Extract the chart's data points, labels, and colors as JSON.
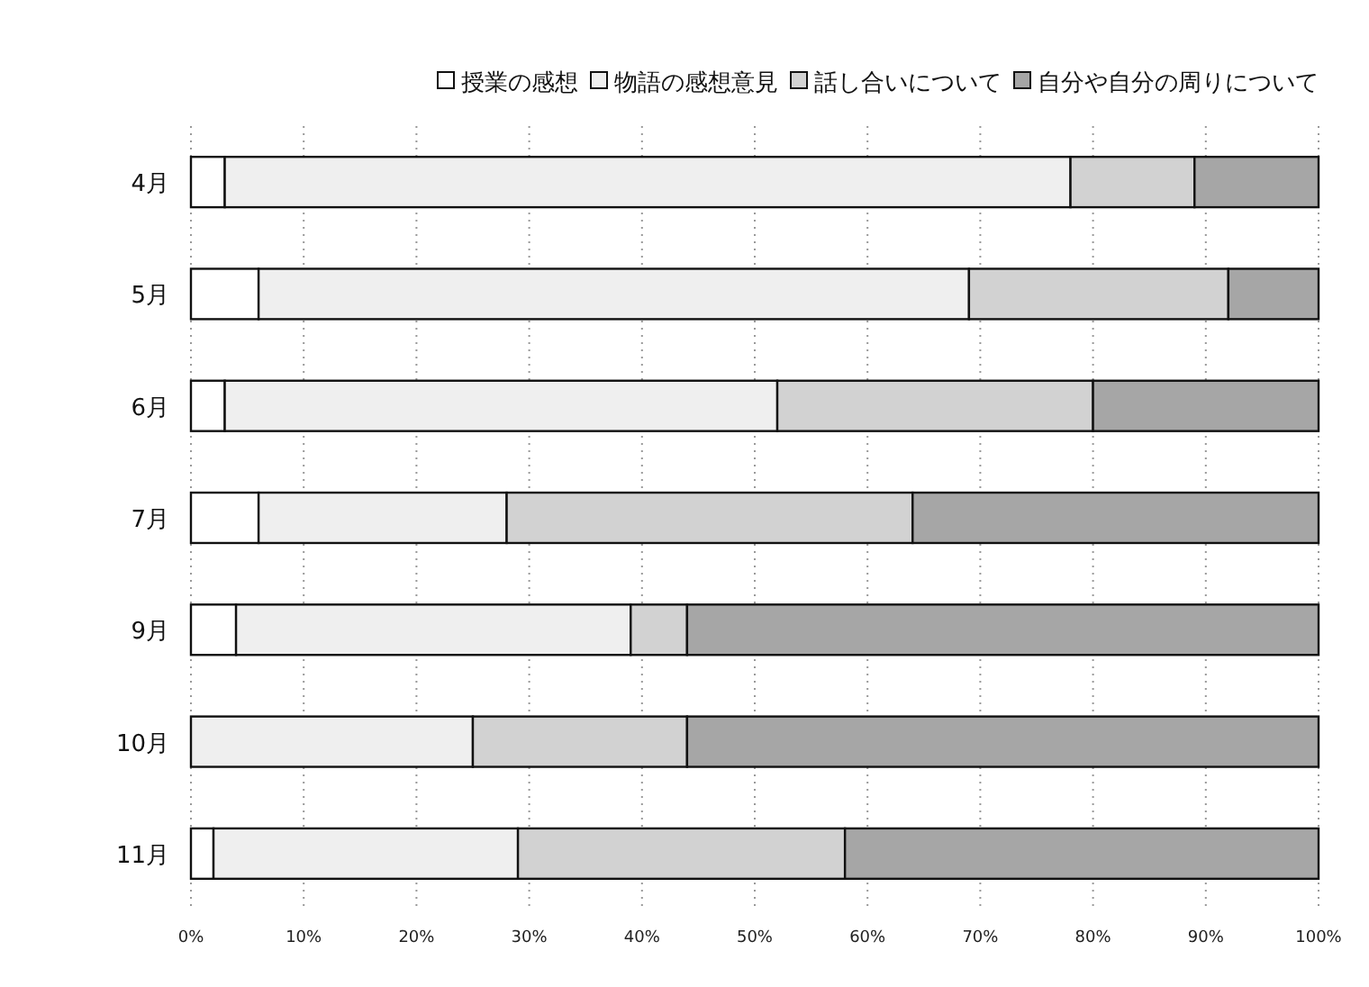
{
  "chart_data": {
    "type": "bar",
    "orientation": "horizontal",
    "stacked": true,
    "categories": [
      "4月",
      "5月",
      "6月",
      "7月",
      "9月",
      "10月",
      "11月"
    ],
    "series": [
      {
        "name": "授業の感想",
        "color": "#ffffff",
        "values": [
          3,
          6,
          3,
          6,
          4,
          0,
          2
        ]
      },
      {
        "name": "物語の感想意見",
        "color": "#efefef",
        "values": [
          75,
          63,
          49,
          22,
          35,
          25,
          27
        ]
      },
      {
        "name": "話し合いについて",
        "color": "#d2d2d2",
        "values": [
          11,
          23,
          28,
          36,
          5,
          19,
          29
        ]
      },
      {
        "name": "自分や自分の周りについて",
        "color": "#a6a6a6",
        "values": [
          11,
          8,
          20,
          36,
          56,
          56,
          42
        ]
      }
    ],
    "xlim": [
      0,
      100
    ],
    "xticks": [
      {
        "value": 0,
        "label": "0%"
      },
      {
        "value": 10,
        "label": "10%"
      },
      {
        "value": 20,
        "label": "20%"
      },
      {
        "value": 30,
        "label": "30%"
      },
      {
        "value": 40,
        "label": "40%"
      },
      {
        "value": 50,
        "label": "50%"
      },
      {
        "value": 60,
        "label": "60%"
      },
      {
        "value": 70,
        "label": "70%"
      },
      {
        "value": 80,
        "label": "80%"
      },
      {
        "value": 90,
        "label": "90%"
      },
      {
        "value": 100,
        "label": "100%"
      }
    ],
    "grid": "x",
    "legend": "top"
  }
}
